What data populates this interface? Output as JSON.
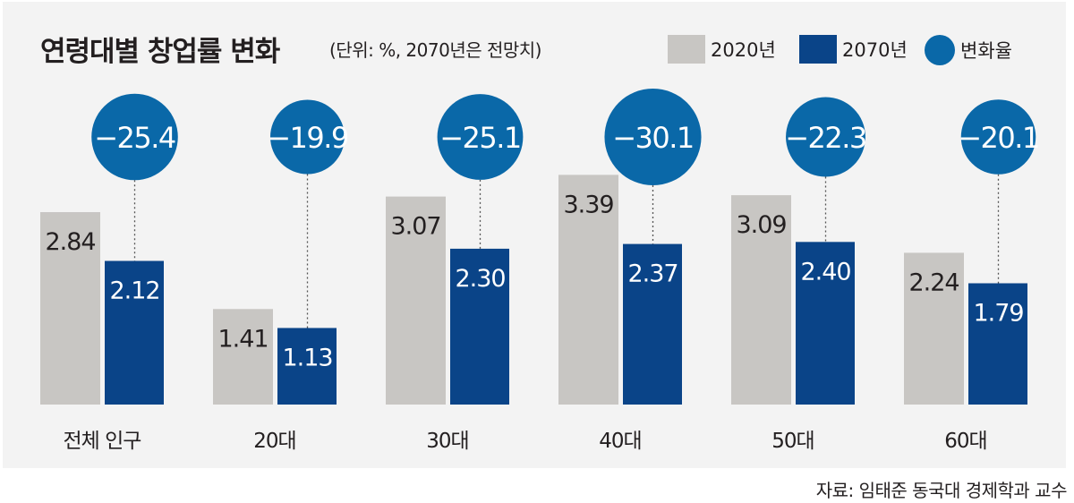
{
  "chart_data": {
    "type": "bar",
    "title": "연령대별 창업률 변화",
    "unit_note": "(단위: %, 2070년은 전망치)",
    "categories": [
      "전체 인구",
      "20대",
      "30대",
      "40대",
      "50대",
      "60대"
    ],
    "series": [
      {
        "name": "2020년",
        "color": "#c8c6c3",
        "values": [
          2.84,
          1.41,
          3.07,
          3.39,
          3.09,
          2.24
        ],
        "labels": [
          "2.84",
          "1.41",
          "3.07",
          "3.39",
          "3.09",
          "2.24"
        ]
      },
      {
        "name": "2070년",
        "color": "#0a4488",
        "values": [
          2.12,
          1.13,
          2.3,
          2.37,
          2.4,
          1.79
        ],
        "labels": [
          "2.12",
          "1.13",
          "2.30",
          "2.37",
          "2.40",
          "1.79"
        ]
      }
    ],
    "change": {
      "name": "변화율",
      "color": "#0a68a8",
      "values": [
        -25.4,
        -19.9,
        -25.1,
        -30.1,
        -22.3,
        -20.1
      ],
      "labels": [
        "−25.4",
        "−19.9",
        "−25.1",
        "−30.1",
        "−22.3",
        "−20.1"
      ]
    },
    "ylim": [
      0,
      3.5
    ],
    "grid": false,
    "legend": "top-right"
  },
  "source": "자료: 임태준 동국대 경제학과 교수"
}
